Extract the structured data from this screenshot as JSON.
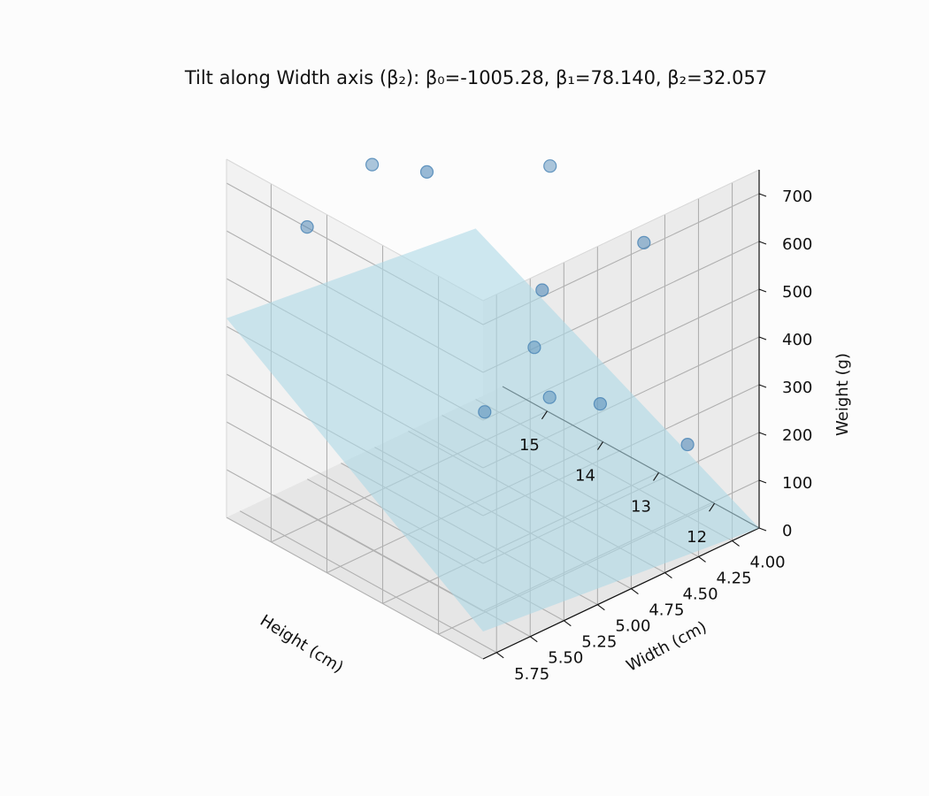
{
  "chart_data": {
    "type": "scatter",
    "title": "Tilt along Width axis (β₂): β₀=-1005.28, β₁=78.140, β₂=32.057",
    "xlabel": "Height (cm)",
    "ylabel": "Width (cm)",
    "zlabel": "Weight (g)",
    "xlim": [
      11.2,
      15.8
    ],
    "ylim": [
      3.8,
      5.85
    ],
    "zlim": [
      0,
      750
    ],
    "xticks": [
      "15",
      "14",
      "13",
      "12"
    ],
    "yticks": [
      "4.00",
      "4.25",
      "4.50",
      "4.75",
      "5.00",
      "5.25",
      "5.50",
      "5.75"
    ],
    "zticks": [
      "0",
      "100",
      "200",
      "300",
      "400",
      "500",
      "600",
      "700"
    ],
    "grid": true,
    "plane": {
      "beta0": -1005.28,
      "beta1": 78.14,
      "beta2": 32.057,
      "color": "#add8e6"
    },
    "marker_color": "#4682b4",
    "points": [
      {
        "x": 15.0,
        "y": 5.1,
        "z": 690
      },
      {
        "x": 15.2,
        "y": 5.5,
        "z": 600
      },
      {
        "x": 14.5,
        "y": 4.9,
        "z": 680
      },
      {
        "x": 13.5,
        "y": 4.4,
        "z": 690
      },
      {
        "x": 12.3,
        "y": 4.2,
        "z": 580
      },
      {
        "x": 13.4,
        "y": 4.5,
        "z": 450
      },
      {
        "x": 13.3,
        "y": 4.6,
        "z": 350
      },
      {
        "x": 12.6,
        "y": 4.4,
        "z": 250
      },
      {
        "x": 12.0,
        "y": 4.0,
        "z": 150
      },
      {
        "x": 12.3,
        "y": 4.9,
        "z": 350
      },
      {
        "x": 12.5,
        "y": 5.3,
        "z": 360
      }
    ]
  }
}
